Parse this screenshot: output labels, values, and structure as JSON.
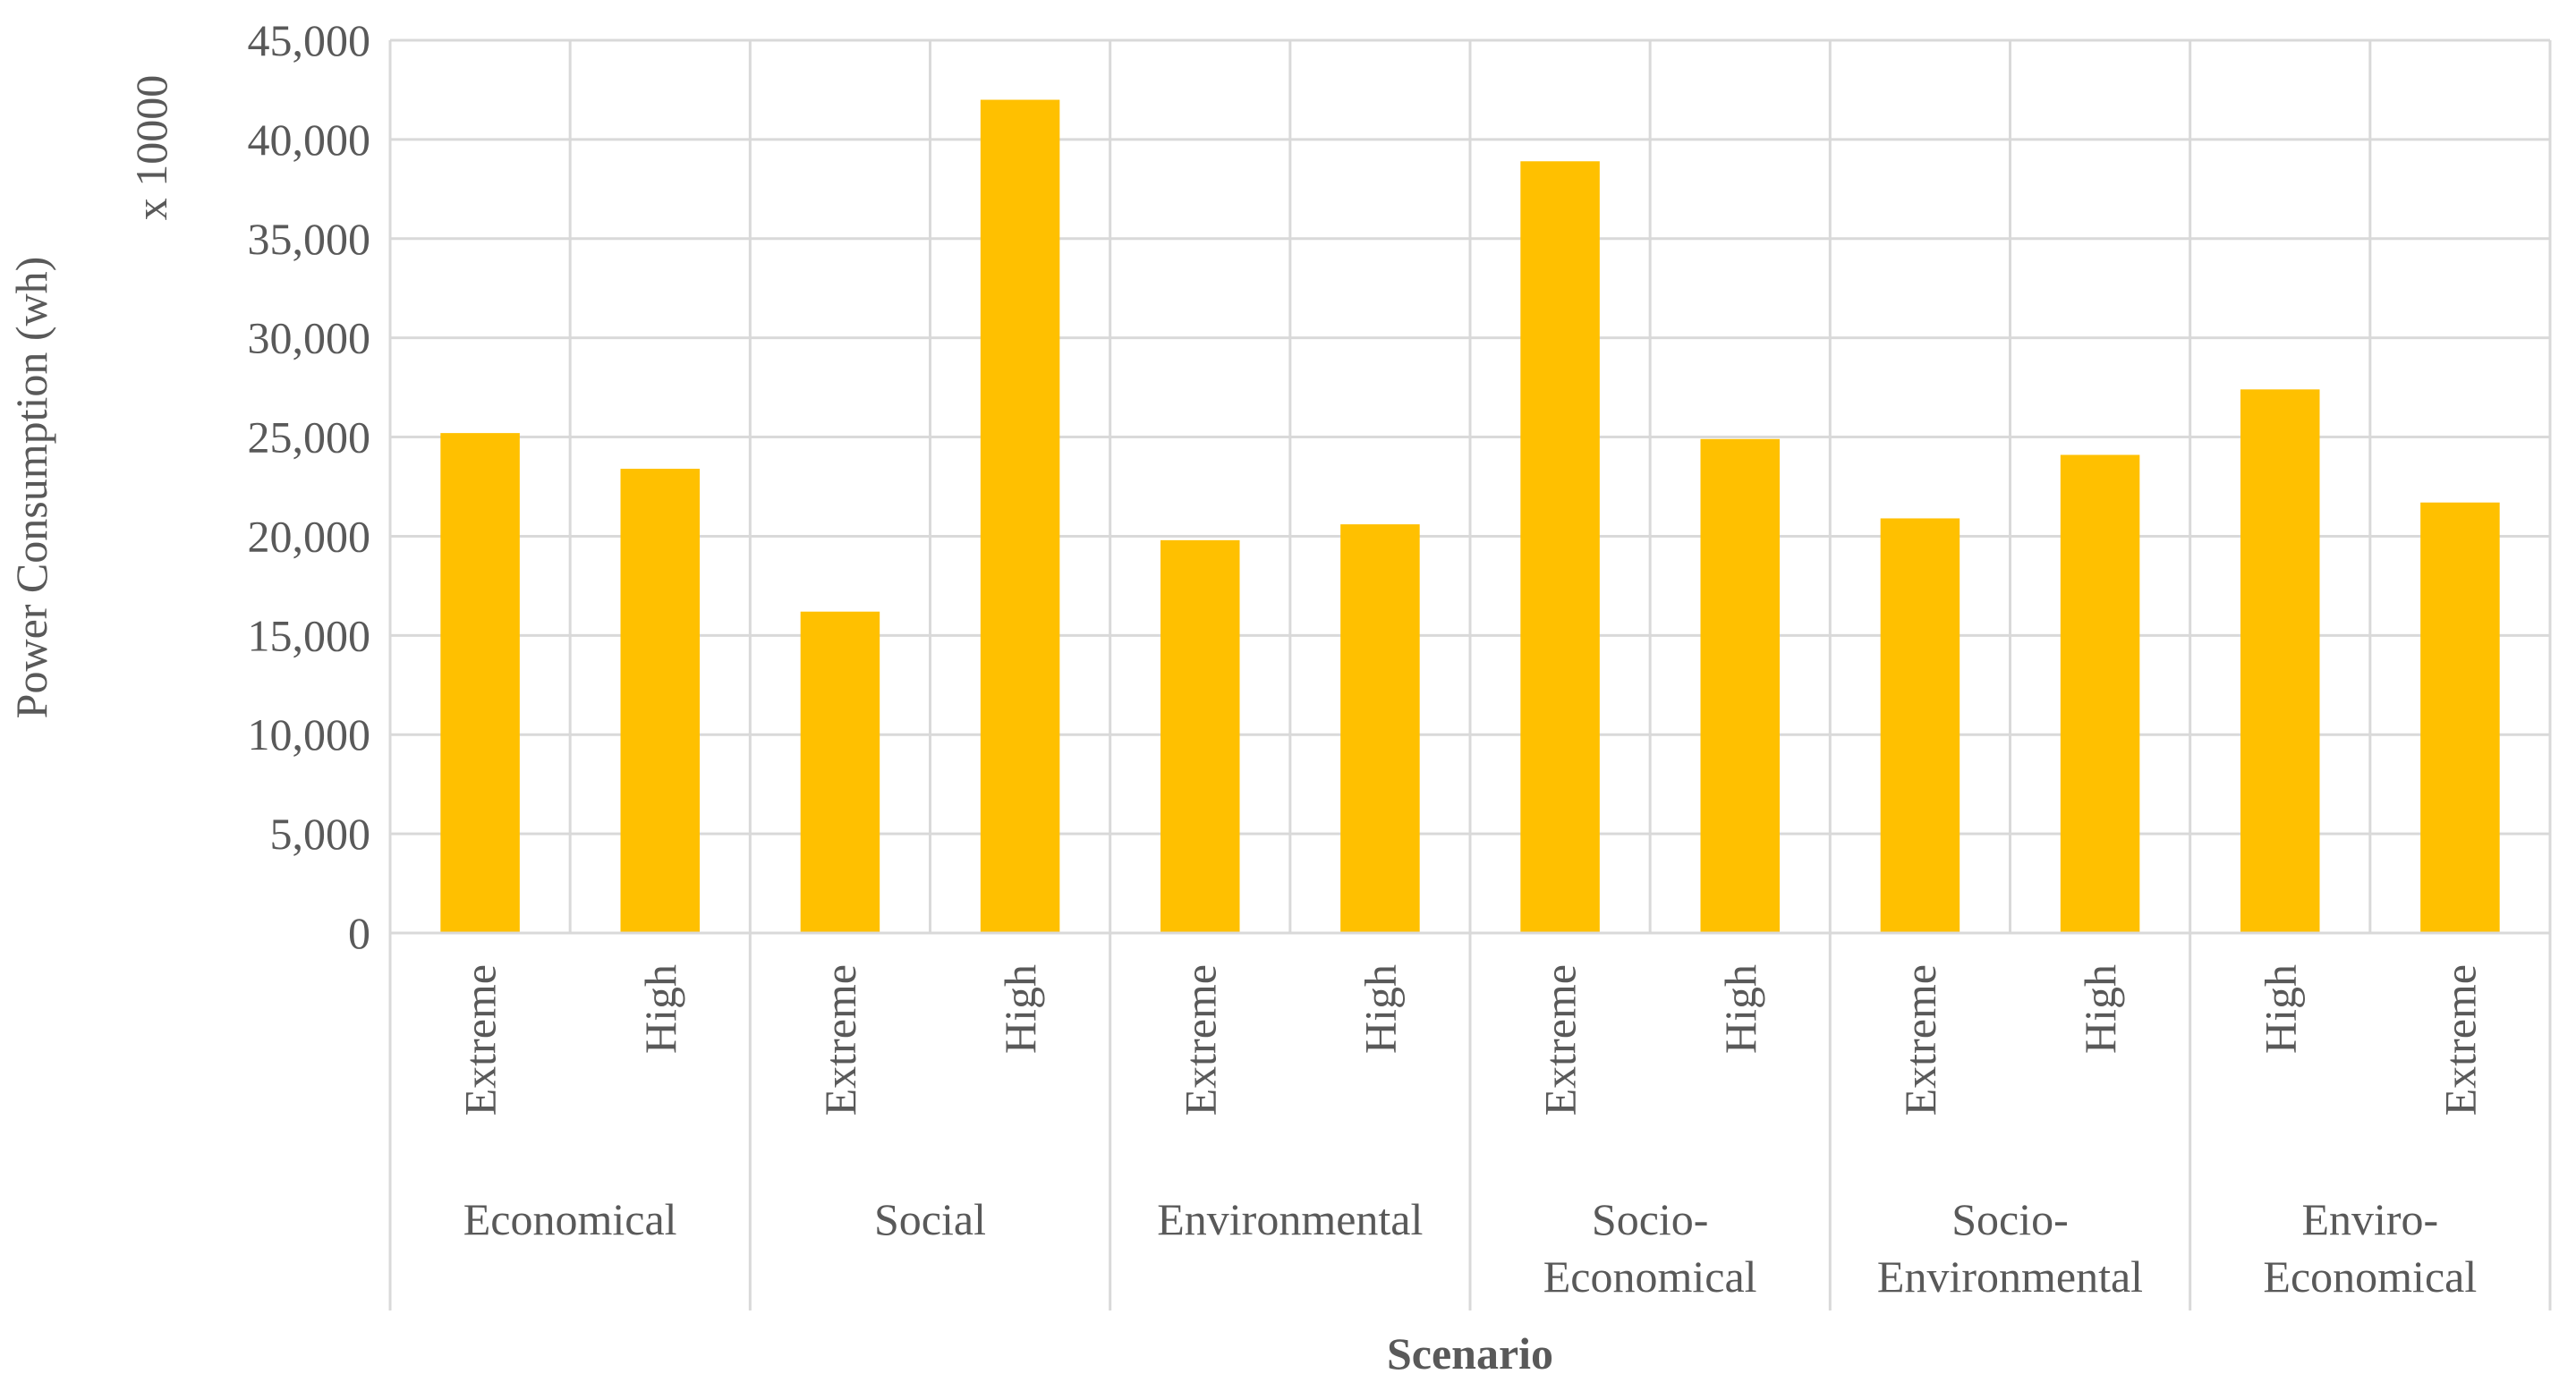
{
  "chart_data": {
    "type": "bar",
    "title": "",
    "xlabel": "Scenario",
    "ylabel": "Power Consumption (wh)",
    "y_multiplier_label": "x 10000",
    "ylim": [
      0,
      45000
    ],
    "y_ticks": [
      0,
      5000,
      10000,
      15000,
      20000,
      25000,
      30000,
      35000,
      40000,
      45000
    ],
    "y_tick_labels": [
      "0",
      "5,000",
      "10,000",
      "15,000",
      "20,000",
      "25,000",
      "30,000",
      "35,000",
      "40,000",
      "45,000"
    ],
    "bar_color": "#FFC000",
    "grid": true,
    "groups": [
      {
        "name": "Economical",
        "name_lines": [
          "Economical"
        ],
        "bars": [
          {
            "label": "Extreme",
            "value": 25200
          },
          {
            "label": "High",
            "value": 23400
          }
        ]
      },
      {
        "name": "Social",
        "name_lines": [
          "Social"
        ],
        "bars": [
          {
            "label": "Extreme",
            "value": 16200
          },
          {
            "label": "High",
            "value": 42000
          }
        ]
      },
      {
        "name": "Environmental",
        "name_lines": [
          "Environmental"
        ],
        "bars": [
          {
            "label": "Extreme",
            "value": 19800
          },
          {
            "label": "High",
            "value": 20600
          }
        ]
      },
      {
        "name": "Socio-Economical",
        "name_lines": [
          "Socio-",
          "Economical"
        ],
        "bars": [
          {
            "label": "Extreme",
            "value": 38900
          },
          {
            "label": "High",
            "value": 24900
          }
        ]
      },
      {
        "name": "Socio-Environmental",
        "name_lines": [
          "Socio-",
          "Environmental"
        ],
        "bars": [
          {
            "label": "Extreme",
            "value": 20900
          },
          {
            "label": "High",
            "value": 24100
          }
        ]
      },
      {
        "name": "Enviro-Economical",
        "name_lines": [
          "Enviro-",
          "Economical"
        ],
        "bars": [
          {
            "label": "High",
            "value": 27400
          },
          {
            "label": "Extreme",
            "value": 21700
          }
        ]
      }
    ]
  }
}
